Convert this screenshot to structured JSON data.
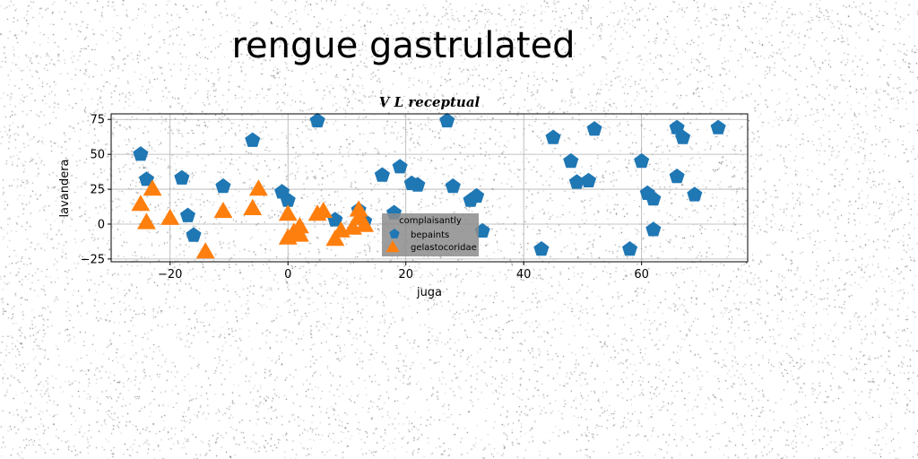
{
  "figure": {
    "suptitle": "rengue gastrulated"
  },
  "chart_data": {
    "type": "scatter",
    "title": "V L receptual",
    "xlabel": "juga",
    "ylabel": "lavandera",
    "xlim": [
      -30,
      78
    ],
    "ylim": [
      -27,
      79
    ],
    "xticks": [
      -20,
      0,
      20,
      40,
      60
    ],
    "yticks": [
      -25,
      0,
      25,
      50,
      75
    ],
    "grid": true,
    "legend": {
      "title": "complaisantly",
      "placement": "lower-center"
    },
    "series": [
      {
        "name": "bepaints",
        "marker": "pentagon",
        "color": "#1f77b4",
        "points": [
          [
            -25,
            50
          ],
          [
            -24,
            32
          ],
          [
            -18,
            33
          ],
          [
            -17,
            6
          ],
          [
            -16,
            -8
          ],
          [
            -11,
            27
          ],
          [
            -6,
            60
          ],
          [
            -1,
            23
          ],
          [
            0,
            17
          ],
          [
            5,
            74
          ],
          [
            8,
            3
          ],
          [
            12,
            10
          ],
          [
            13,
            2
          ],
          [
            16,
            35
          ],
          [
            18,
            8
          ],
          [
            19,
            41
          ],
          [
            21,
            29
          ],
          [
            22,
            28
          ],
          [
            27,
            74
          ],
          [
            28,
            27
          ],
          [
            31,
            17
          ],
          [
            32,
            20
          ],
          [
            33,
            -5
          ],
          [
            43,
            -18
          ],
          [
            45,
            62
          ],
          [
            48,
            45
          ],
          [
            49,
            30
          ],
          [
            51,
            31
          ],
          [
            52,
            68
          ],
          [
            58,
            -18
          ],
          [
            60,
            45
          ],
          [
            61,
            22
          ],
          [
            62,
            18
          ],
          [
            62,
            -4
          ],
          [
            66,
            69
          ],
          [
            66,
            34
          ],
          [
            67,
            62
          ],
          [
            69,
            21
          ],
          [
            73,
            69
          ]
        ]
      },
      {
        "name": "gelastocoridae",
        "marker": "triangle",
        "color": "#ff7f0e",
        "points": [
          [
            -25,
            14
          ],
          [
            -24,
            1
          ],
          [
            -23,
            25
          ],
          [
            -20,
            4
          ],
          [
            -14,
            -20
          ],
          [
            -11,
            9
          ],
          [
            -6,
            11
          ],
          [
            -5,
            25
          ],
          [
            0,
            7
          ],
          [
            0,
            -10
          ],
          [
            1,
            -6
          ],
          [
            2,
            -2
          ],
          [
            2,
            -8
          ],
          [
            5,
            7
          ],
          [
            6,
            9
          ],
          [
            8,
            -11
          ],
          [
            9,
            -5
          ],
          [
            11,
            -3
          ],
          [
            12,
            10
          ],
          [
            12,
            4
          ],
          [
            13,
            -1
          ]
        ]
      }
    ]
  }
}
